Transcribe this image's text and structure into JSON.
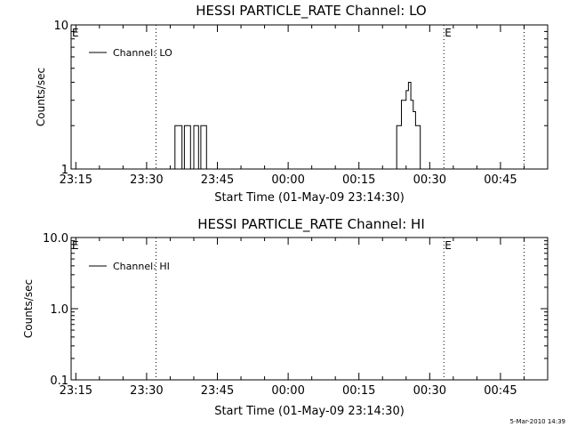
{
  "timestamp": "5-Mar-2010 14:39",
  "chart_data": [
    {
      "type": "line",
      "title": "HESSI PARTICLE_RATE Channel: LO",
      "xlabel": "Start Time (01-May-09 23:14:30)",
      "ylabel": "Counts/sec",
      "yscale": "log",
      "ylim": [
        1,
        10
      ],
      "ytick_labels": [
        "1",
        "10"
      ],
      "xlim": [
        "23:14",
        "00:55"
      ],
      "xtick_labels": [
        "23:15",
        "23:30",
        "23:45",
        "00:00",
        "00:15",
        "00:30",
        "00:45"
      ],
      "legend": {
        "placement": "top-left",
        "entries": [
          "Channel: LO"
        ]
      },
      "event_markers": [
        {
          "x": "23:14",
          "label": "E"
        },
        {
          "x": "23:32",
          "label": ""
        },
        {
          "x": "00:33",
          "label": "E"
        },
        {
          "x": "00:50",
          "label": ""
        }
      ],
      "series": [
        {
          "x": [
            "23:14",
            "23:36",
            "23:36",
            "23:37.5",
            "23:37.5",
            "23:38",
            "23:38",
            "23:39.3",
            "23:39.3",
            "23:40",
            "23:40",
            "23:41",
            "23:41",
            "23:41.5",
            "23:41.5",
            "23:42.7",
            "23:42.7",
            "23:43",
            "23:43",
            "00:23",
            "00:23",
            "00:24",
            "00:24",
            "00:25",
            "00:25",
            "00:25.5",
            "00:25.5",
            "00:26",
            "00:26",
            "00:26.5",
            "00:26.5",
            "00:27",
            "00:27",
            "00:28",
            "00:28",
            "00:29",
            "00:29",
            "00:55"
          ],
          "y": [
            1,
            1,
            2,
            2,
            1,
            1,
            2,
            2,
            1,
            1,
            2,
            2,
            1,
            1,
            2,
            2,
            1,
            1,
            1,
            1,
            2,
            2,
            3,
            3,
            3.5,
            3.5,
            4,
            4,
            3,
            3,
            2.5,
            2.5,
            2,
            2,
            1,
            1,
            1,
            1
          ]
        }
      ]
    },
    {
      "type": "line",
      "title": "HESSI PARTICLE_RATE Channel: HI",
      "xlabel": "Start Time (01-May-09 23:14:30)",
      "ylabel": "Counts/sec",
      "yscale": "log",
      "ylim": [
        0.1,
        10
      ],
      "ytick_labels": [
        "0.1",
        "1.0",
        "10.0"
      ],
      "xlim": [
        "23:14",
        "00:55"
      ],
      "xtick_labels": [
        "23:15",
        "23:30",
        "23:45",
        "00:00",
        "00:15",
        "00:30",
        "00:45"
      ],
      "legend": {
        "placement": "top-left",
        "entries": [
          "Channel: HI"
        ]
      },
      "event_markers": [
        {
          "x": "23:14",
          "label": "E"
        },
        {
          "x": "23:32",
          "label": ""
        },
        {
          "x": "00:33",
          "label": "E"
        },
        {
          "x": "00:50",
          "label": ""
        }
      ],
      "series": [
        {
          "x": [],
          "y": []
        }
      ]
    }
  ]
}
